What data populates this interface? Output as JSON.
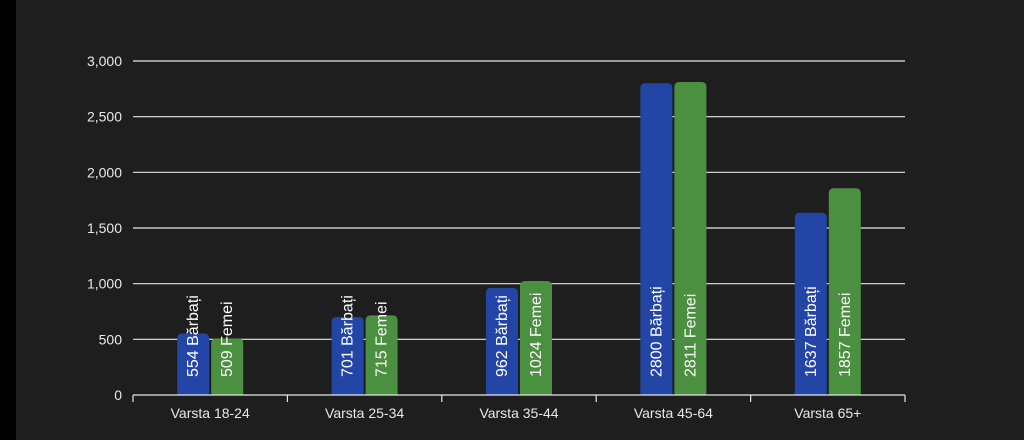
{
  "chart_data": {
    "type": "bar",
    "categories": [
      "Varsta 18-24",
      "Varsta 25-34",
      "Varsta 35-44",
      "Varsta 45-64",
      "Varsta 65+"
    ],
    "series": [
      {
        "name": "Bărbați",
        "values": [
          554,
          701,
          962,
          2800,
          1637
        ],
        "labels": [
          "554 Bărbați",
          "701 Bărbați",
          "962 Bărbați",
          "2800 Bărbați",
          "1637 Bărbați"
        ],
        "color": "#2346a6"
      },
      {
        "name": "Femei",
        "values": [
          509,
          715,
          1024,
          2811,
          1857
        ],
        "labels": [
          "509 Femei",
          "715 Femei",
          "1024 Femei",
          "2811 Femei",
          "1857 Femei"
        ],
        "color": "#4b8f40"
      }
    ],
    "y_ticks": [
      "0",
      "500",
      "1,000",
      "1,500",
      "2,000",
      "2,500",
      "3,000"
    ],
    "ylim": [
      0,
      3000
    ],
    "grid": true,
    "colors": {
      "background": "#1e1e1e",
      "grid": "#e6e6e6",
      "text": "#e8e8e8"
    }
  }
}
